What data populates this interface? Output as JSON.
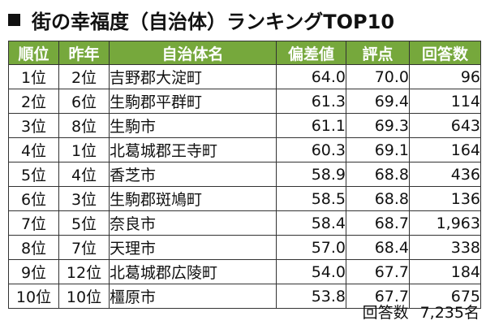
{
  "title": {
    "marker_icon": "black-square-icon",
    "text": "街の幸福度（自治体）ランキングTOP10"
  },
  "colors": {
    "header_bg": "#76a83c",
    "header_text": "#ffffff",
    "border": "#333333"
  },
  "table": {
    "headers": [
      "順位",
      "昨年",
      "自治体名",
      "偏差値",
      "評点",
      "回答数"
    ],
    "rows": [
      {
        "rank": "1位",
        "prev": "2位",
        "name": "吉野郡大淀町",
        "deviation": "64.0",
        "score": "70.0",
        "count": "96"
      },
      {
        "rank": "2位",
        "prev": "6位",
        "name": "生駒郡平群町",
        "deviation": "61.3",
        "score": "69.4",
        "count": "114"
      },
      {
        "rank": "3位",
        "prev": "8位",
        "name": "生駒市",
        "deviation": "61.1",
        "score": "69.3",
        "count": "643"
      },
      {
        "rank": "4位",
        "prev": "1位",
        "name": "北葛城郡王寺町",
        "deviation": "60.3",
        "score": "69.1",
        "count": "164"
      },
      {
        "rank": "5位",
        "prev": "4位",
        "name": "香芝市",
        "deviation": "58.9",
        "score": "68.8",
        "count": "436"
      },
      {
        "rank": "6位",
        "prev": "3位",
        "name": "生駒郡斑鳩町",
        "deviation": "58.5",
        "score": "68.8",
        "count": "136"
      },
      {
        "rank": "7位",
        "prev": "5位",
        "name": "奈良市",
        "deviation": "58.4",
        "score": "68.7",
        "count": "1,963"
      },
      {
        "rank": "8位",
        "prev": "7位",
        "name": "天理市",
        "deviation": "57.0",
        "score": "68.4",
        "count": "338"
      },
      {
        "rank": "9位",
        "prev": "12位",
        "name": "北葛城郡広陵町",
        "deviation": "54.0",
        "score": "67.7",
        "count": "184"
      },
      {
        "rank": "10位",
        "prev": "10位",
        "name": "橿原市",
        "deviation": "53.8",
        "score": "67.7",
        "count": "675"
      }
    ]
  },
  "footer": {
    "label": "回答数",
    "value": "7,235名"
  }
}
